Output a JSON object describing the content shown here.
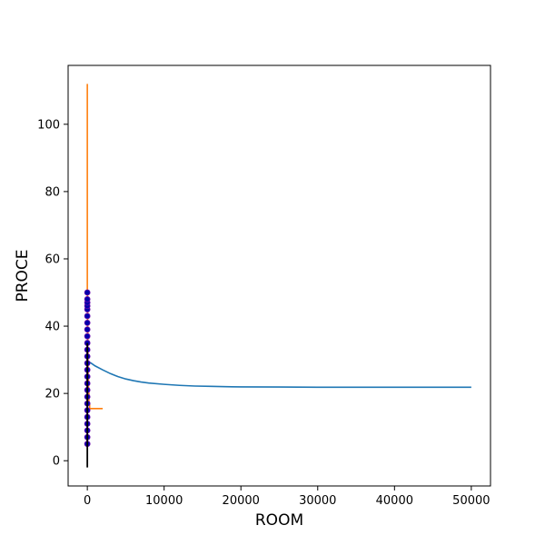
{
  "chart_data": {
    "type": "line",
    "xlabel": "ROOM",
    "ylabel": "PROCE",
    "xlim": [
      -2500,
      52500
    ],
    "ylim": [
      -7.5,
      117.5
    ],
    "x_ticks": [
      0,
      10000,
      20000,
      30000,
      40000,
      50000
    ],
    "x_tick_labels": [
      "0",
      "10000",
      "20000",
      "30000",
      "40000",
      "50000"
    ],
    "y_ticks": [
      0,
      20,
      40,
      60,
      80,
      100
    ],
    "y_tick_labels": [
      "0",
      "20",
      "40",
      "60",
      "80",
      "100"
    ],
    "grid": false,
    "colors": {
      "series_blue": "#1f77b4",
      "series_orange": "#ff7f0e",
      "marker": "#0000aa",
      "vline": "#000000"
    },
    "series": [
      {
        "style": "line",
        "color": "#1f77b4",
        "x": [
          100,
          500,
          1000,
          2000,
          3000,
          4000,
          5000,
          6000,
          7000,
          8000,
          10000,
          12000,
          14000,
          16000,
          18000,
          20000,
          25000,
          30000,
          35000,
          40000,
          45000,
          50000
        ],
        "y": [
          29.5,
          29.0,
          28.2,
          27.0,
          25.9,
          25.0,
          24.3,
          23.8,
          23.4,
          23.1,
          22.7,
          22.4,
          22.2,
          22.1,
          22.0,
          21.95,
          21.9,
          21.85,
          21.85,
          21.85,
          21.85,
          21.85
        ]
      },
      {
        "style": "step",
        "color": "#ff7f0e",
        "x": [
          0,
          0,
          20,
          40,
          60,
          80,
          100,
          150,
          200,
          300,
          2000
        ],
        "y": [
          112,
          50,
          45,
          38,
          32,
          28,
          24,
          20,
          17,
          15.5,
          15.5
        ]
      },
      {
        "style": "scatter",
        "color": "#0000aa",
        "x": [
          0,
          0,
          0,
          0,
          0,
          0,
          0,
          0,
          0,
          0,
          0,
          0,
          0,
          0,
          0,
          0,
          0,
          0,
          0,
          0,
          0,
          0,
          0,
          0,
          0
        ],
        "y": [
          5,
          7,
          9,
          11,
          13,
          15,
          17,
          19,
          21,
          23,
          25,
          27,
          29,
          31,
          33,
          35,
          37,
          39,
          41,
          43,
          45,
          46,
          47,
          48,
          50
        ]
      },
      {
        "style": "vline",
        "color": "#000000",
        "x": [
          0,
          0
        ],
        "y": [
          -2,
          35
        ]
      }
    ]
  }
}
